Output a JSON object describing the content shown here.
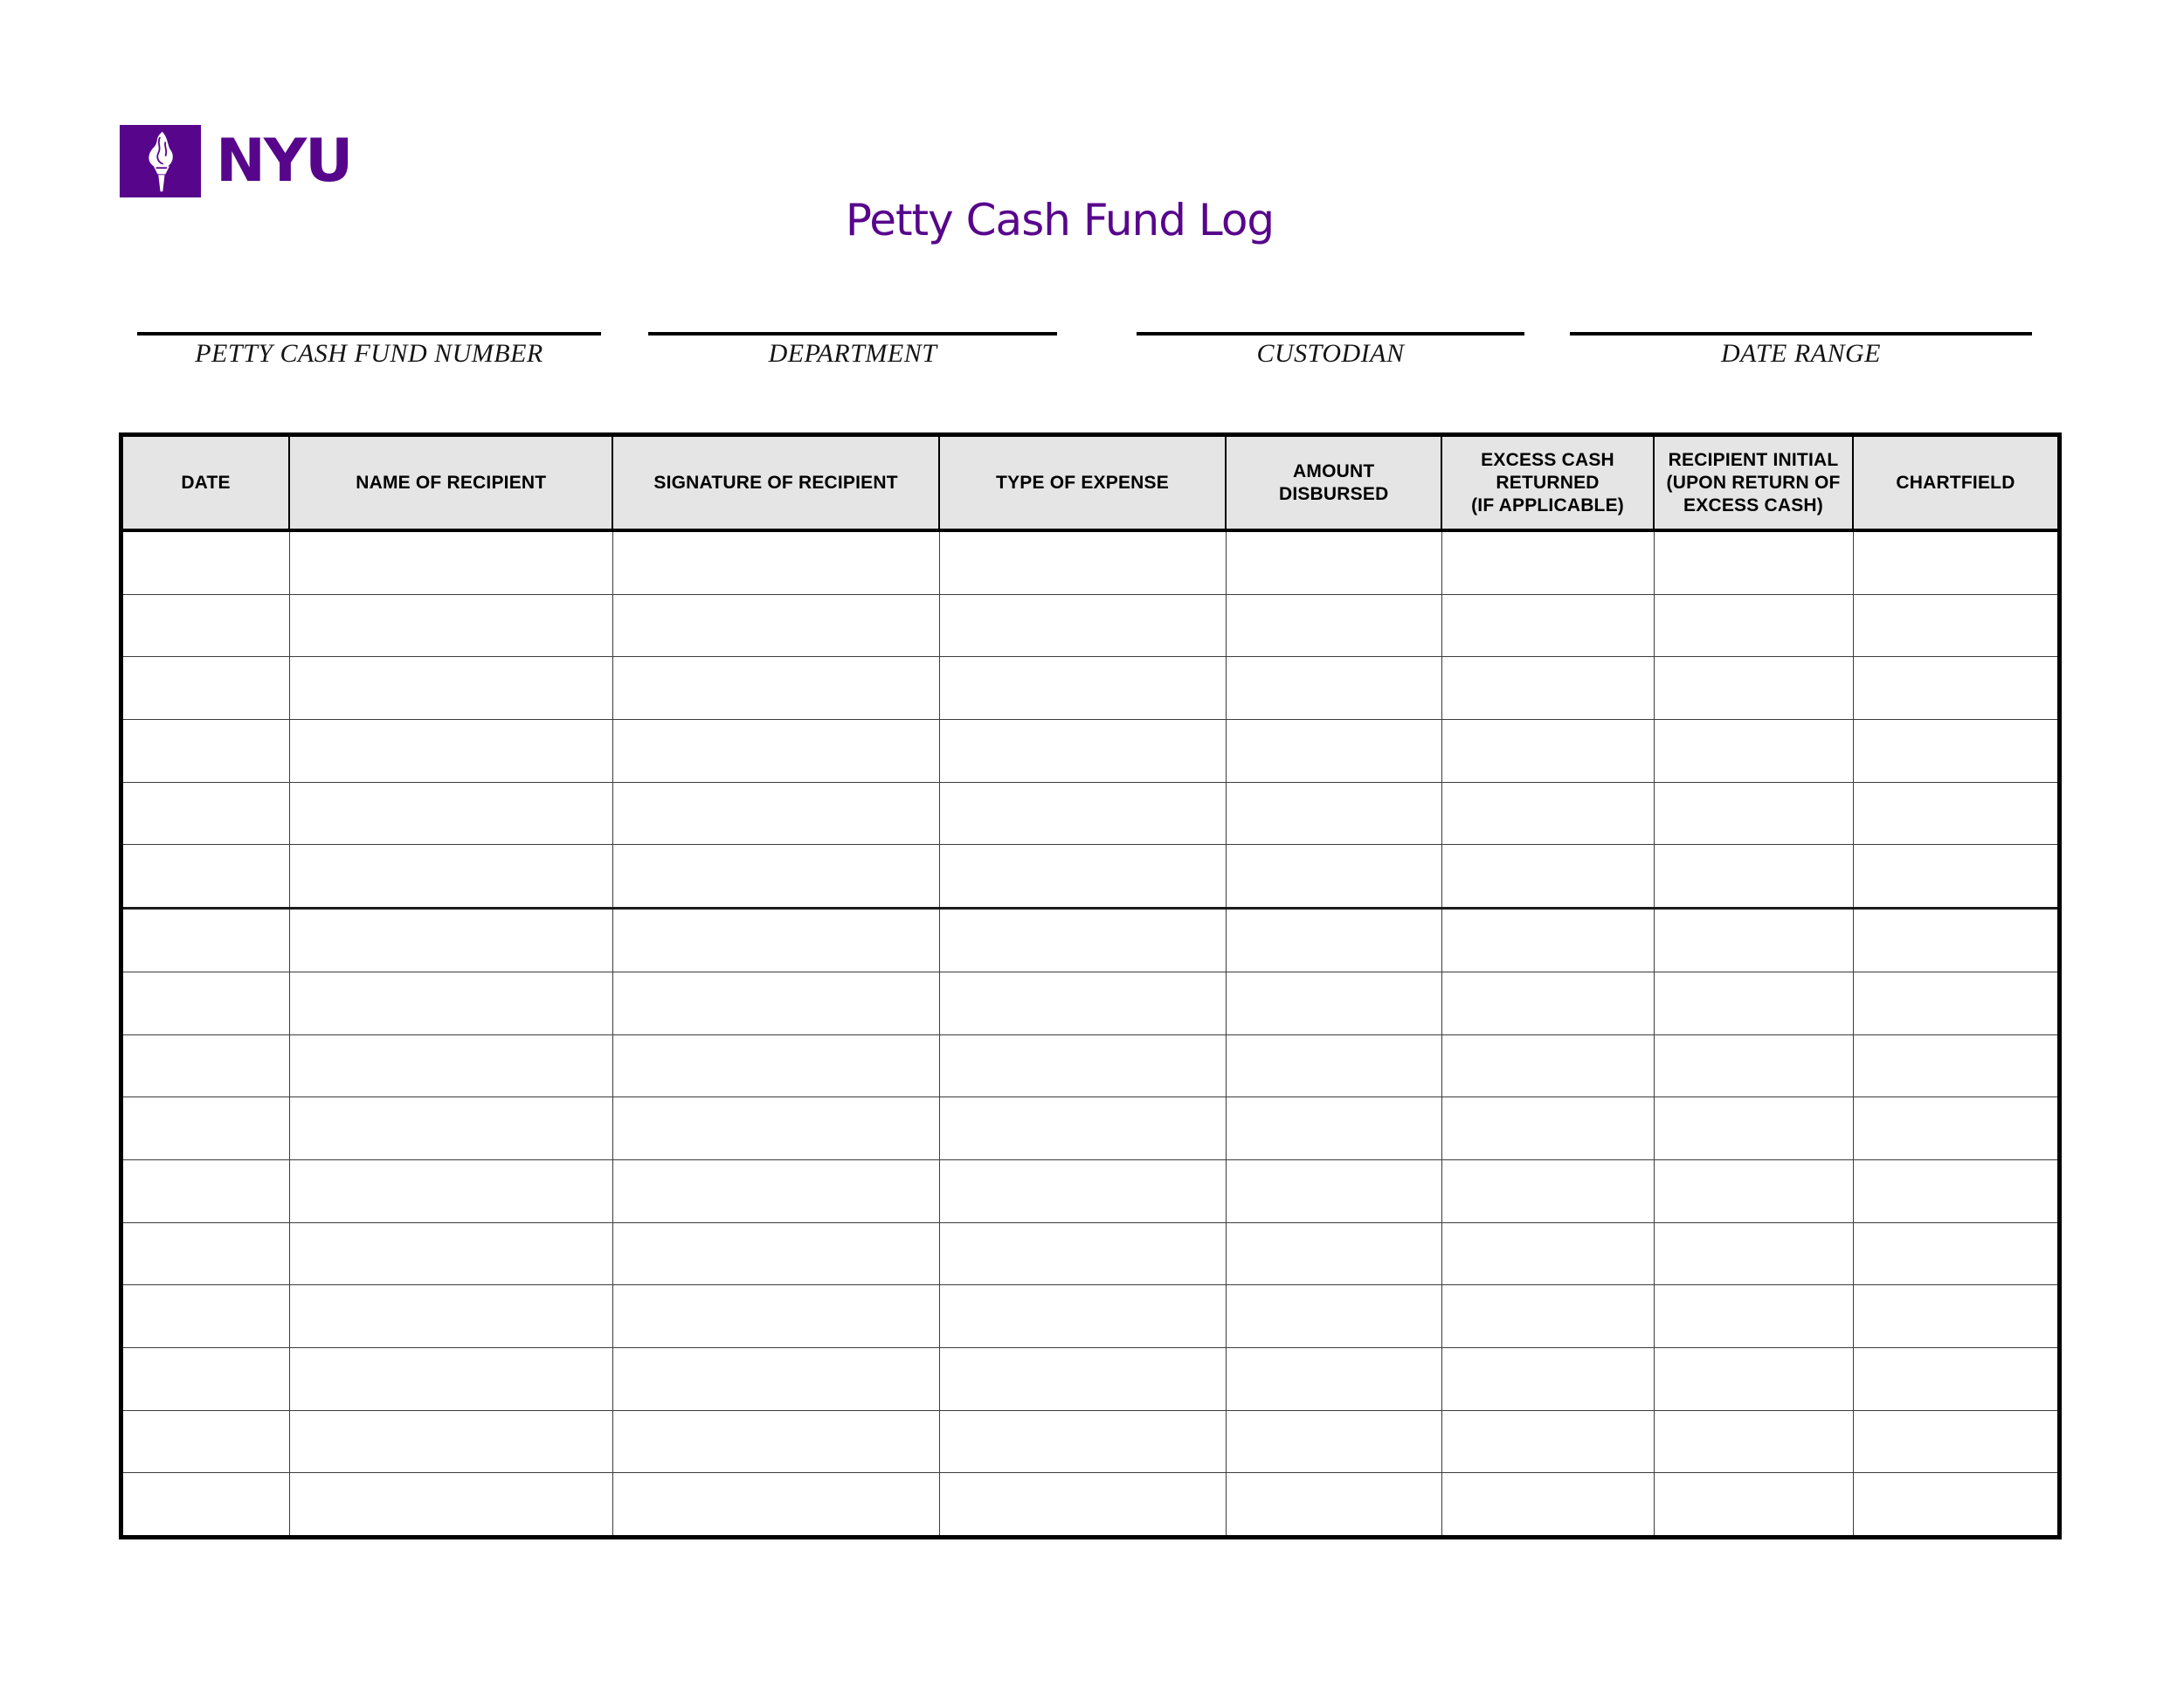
{
  "page": {
    "title": "Petty Cash Fund Log"
  },
  "logo": {
    "wordmark": "NYU",
    "icon": "torch-icon",
    "brand_color": "#57068C"
  },
  "fields": [
    {
      "label": "PETTY CASH FUND NUMBER",
      "value": ""
    },
    {
      "label": "DEPARTMENT",
      "value": ""
    },
    {
      "label": "CUSTODIAN",
      "value": ""
    },
    {
      "label": "DATE RANGE",
      "value": ""
    }
  ],
  "table": {
    "columns": [
      {
        "label": "DATE"
      },
      {
        "label": "NAME OF RECIPIENT"
      },
      {
        "label": "SIGNATURE OF RECIPIENT"
      },
      {
        "label": "TYPE OF EXPENSE"
      },
      {
        "label": "AMOUNT\nDISBURSED"
      },
      {
        "label": "EXCESS CASH\nRETURNED\n(IF APPLICABLE)"
      },
      {
        "label": "RECIPIENT INITIAL\n(UPON RETURN OF\nEXCESS CASH)"
      },
      {
        "label": "CHARTFIELD"
      }
    ],
    "row_count": 16,
    "rows_are_empty": true
  },
  "colors": {
    "brand_purple": "#57068C",
    "header_background": "#E5E5E5",
    "grid_line": "#3C3C3C",
    "border": "#000000"
  }
}
